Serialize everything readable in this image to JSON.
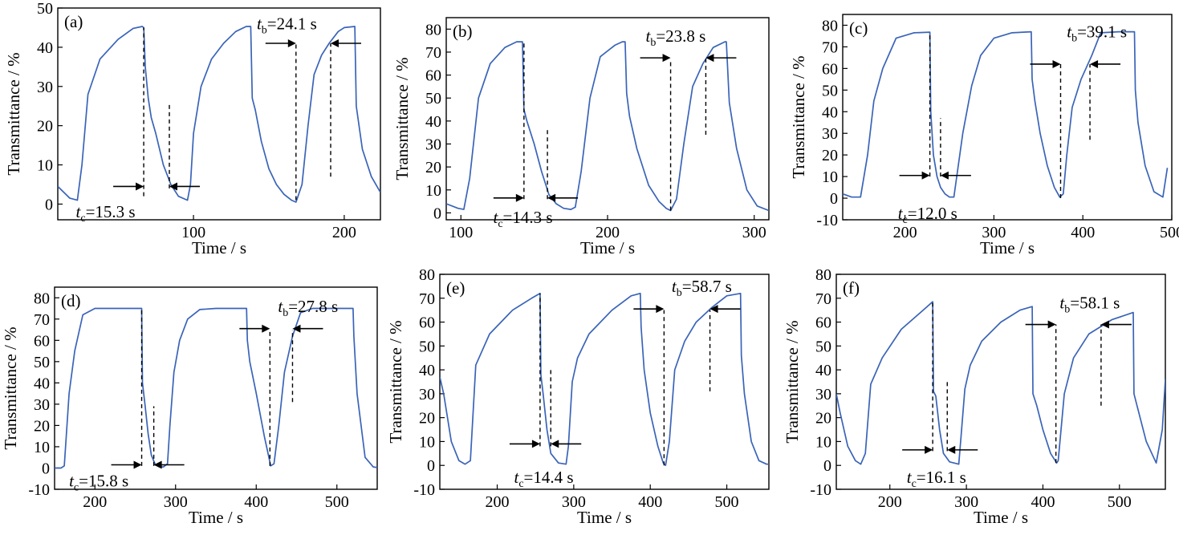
{
  "chart_data": [
    {
      "panel_label": "(a)",
      "type": "line",
      "xlabel": "Time / s",
      "ylabel": "Transmittance / %",
      "xlim": [
        10,
        224
      ],
      "ylim": [
        -4,
        50
      ],
      "xticks": [
        100,
        200
      ],
      "yticks": [
        0,
        10,
        20,
        30,
        40,
        50
      ],
      "series": [
        {
          "x": [
            10,
            18,
            23,
            26,
            30,
            38,
            50,
            60,
            66,
            67,
            68,
            70,
            72,
            75,
            80,
            85,
            90,
            96,
            98,
            100,
            105,
            112,
            120,
            128,
            135,
            138,
            139,
            141,
            145,
            150,
            155,
            160,
            165,
            168,
            172,
            176,
            180,
            185,
            190,
            196,
            200,
            207,
            208,
            212,
            218,
            224
          ],
          "y": [
            4.5,
            1.5,
            1,
            10,
            28,
            37,
            42,
            44.8,
            45.3,
            45,
            35,
            27,
            22,
            18,
            10,
            5,
            2,
            1,
            5,
            18,
            30,
            37,
            41,
            44,
            45.3,
            45.3,
            27,
            24,
            16,
            9,
            5,
            2.5,
            1,
            0.5,
            5,
            20,
            33,
            38,
            41,
            44,
            45,
            45.3,
            25,
            14,
            7,
            3
          ]
        }
      ],
      "annotations": [
        {
          "kind": "tc",
          "var": "t",
          "sub": "c",
          "rest": "=15.3 s",
          "x1": 67,
          "x2": 84,
          "dash1_y": [
            2,
            45
          ],
          "dash2_y": [
            4,
            26
          ],
          "arrow_y": 4.5,
          "text_x": 22,
          "text_y": -2
        },
        {
          "kind": "tb",
          "var": "t",
          "sub": "b",
          "rest": "=24.1 s",
          "x1": 168,
          "x2": 191,
          "dash1_y": [
            1,
            41
          ],
          "dash2_y": [
            7,
            41
          ],
          "arrow_y": 41,
          "text_x": 142,
          "text_y": 46
        }
      ]
    },
    {
      "panel_label": "(b)",
      "type": "line",
      "xlabel": "Time / s",
      "ylabel": "Transmittance / %",
      "xlim": [
        90,
        310
      ],
      "ylim": [
        -3,
        85
      ],
      "xticks": [
        100,
        200,
        300
      ],
      "yticks": [
        0,
        10,
        20,
        30,
        40,
        50,
        60,
        70,
        80
      ],
      "series": [
        {
          "x": [
            90,
            98,
            102,
            106,
            112,
            120,
            130,
            138,
            142,
            143,
            145,
            150,
            155,
            160,
            165,
            170,
            175,
            178,
            182,
            188,
            195,
            205,
            210,
            212,
            213,
            215,
            220,
            228,
            235,
            240,
            243,
            247,
            252,
            258,
            265,
            272,
            280,
            281,
            283,
            288,
            295,
            302,
            310
          ],
          "y": [
            4,
            2,
            1.5,
            15,
            50,
            65,
            72,
            74.5,
            74.5,
            45,
            40,
            30,
            18,
            8,
            4,
            2,
            1.5,
            2.5,
            18,
            50,
            68,
            73,
            74.5,
            74.5,
            52,
            42,
            28,
            12,
            5,
            2,
            1,
            6,
            30,
            55,
            65,
            72,
            74.5,
            74.5,
            48,
            28,
            10,
            3,
            1
          ]
        }
      ],
      "annotations": [
        {
          "kind": "tc",
          "var": "t",
          "sub": "c",
          "rest": "=14.3 s",
          "x1": 143,
          "x2": 159,
          "dash1_y": [
            6,
            74
          ],
          "dash2_y": [
            6,
            37
          ],
          "arrow_y": 6.5,
          "text_x": 122,
          "text_y": -2
        },
        {
          "kind": "tb",
          "var": "t",
          "sub": "b",
          "rest": "=23.8 s",
          "x1": 243,
          "x2": 267,
          "dash1_y": [
            1,
            67
          ],
          "dash2_y": [
            34,
            67
          ],
          "arrow_y": 67.5,
          "text_x": 226,
          "text_y": 77
        }
      ]
    },
    {
      "panel_label": "(c)",
      "type": "line",
      "xlabel": "Time / s",
      "ylabel": "Transmittance / %",
      "xlim": [
        130,
        500
      ],
      "ylim": [
        -10,
        85
      ],
      "xticks": [
        200,
        300,
        400,
        500
      ],
      "yticks": [
        -10,
        0,
        10,
        20,
        30,
        40,
        50,
        60,
        70,
        80
      ],
      "series": [
        {
          "x": [
            130,
            140,
            150,
            158,
            165,
            175,
            190,
            210,
            228,
            229,
            232,
            236,
            240,
            245,
            250,
            255,
            265,
            275,
            285,
            300,
            320,
            342,
            343,
            346,
            352,
            360,
            368,
            374,
            378,
            382,
            388,
            398,
            410,
            420,
            440,
            458,
            459,
            462,
            470,
            480,
            490,
            495
          ],
          "y": [
            2,
            0.5,
            0.5,
            20,
            45,
            60,
            74,
            76.5,
            76.8,
            40,
            20,
            10,
            5,
            2,
            0.5,
            0.5,
            30,
            52,
            66,
            74,
            76.5,
            77,
            55,
            45,
            30,
            15,
            5,
            0.5,
            2,
            20,
            42,
            55,
            66,
            76.5,
            77,
            77,
            50,
            35,
            15,
            3,
            0.5,
            14
          ]
        }
      ],
      "annotations": [
        {
          "kind": "tc",
          "var": "t",
          "sub": "c",
          "rest": "=12.0 s",
          "x1": 228,
          "x2": 240,
          "dash1_y": [
            10,
            76
          ],
          "dash2_y": [
            10,
            37
          ],
          "arrow_y": 10.5,
          "text_x": 192,
          "text_y": -7
        },
        {
          "kind": "tb",
          "var": "t",
          "sub": "b",
          "rest": "=39.1 s",
          "x1": 375,
          "x2": 408,
          "dash1_y": [
            0,
            62
          ],
          "dash2_y": [
            27,
            62
          ],
          "arrow_y": 62,
          "text_x": 382,
          "text_y": 77
        }
      ]
    },
    {
      "panel_label": "(d)",
      "type": "line",
      "xlabel": "Time / s",
      "ylabel": "Transmittance / %",
      "xlim": [
        150,
        550
      ],
      "ylim": [
        -10,
        85
      ],
      "xticks": [
        200,
        300,
        400,
        500
      ],
      "yticks": [
        -10,
        0,
        10,
        20,
        30,
        40,
        50,
        60,
        70,
        80
      ],
      "series": [
        {
          "x": [
            150,
            158,
            162,
            168,
            175,
            185,
            200,
            220,
            240,
            258,
            259,
            262,
            266,
            270,
            275,
            280,
            285,
            290,
            293,
            298,
            305,
            315,
            330,
            350,
            370,
            388,
            389,
            392,
            400,
            410,
            418,
            422,
            428,
            435,
            445,
            455,
            470,
            500,
            520,
            521,
            525,
            535,
            545,
            550
          ],
          "y": [
            0,
            0,
            1,
            35,
            55,
            72,
            75,
            75,
            75,
            75,
            40,
            30,
            16,
            6,
            1.5,
            0.5,
            0.5,
            2,
            20,
            45,
            60,
            70,
            74.5,
            75,
            75,
            75,
            60,
            50,
            35,
            15,
            1,
            2,
            20,
            45,
            62,
            73,
            75,
            75,
            75,
            62,
            35,
            5,
            0.5,
            0.2
          ]
        }
      ],
      "annotations": [
        {
          "kind": "tc",
          "var": "t",
          "sub": "c",
          "rest": "=15.8 s",
          "x1": 258,
          "x2": 273,
          "dash1_y": [
            1,
            75
          ],
          "dash2_y": [
            1,
            29
          ],
          "arrow_y": 1.5,
          "text_x": 168,
          "text_y": -6
        },
        {
          "kind": "tb",
          "var": "t",
          "sub": "b",
          "rest": "=27.8 s",
          "x1": 417,
          "x2": 445,
          "dash1_y": [
            1,
            65
          ],
          "dash2_y": [
            31,
            65
          ],
          "arrow_y": 65.5,
          "text_x": 427,
          "text_y": 76
        }
      ]
    },
    {
      "panel_label": "(e)",
      "type": "line",
      "xlabel": "Time / s",
      "ylabel": "Transmittance / %",
      "xlim": [
        125,
        555
      ],
      "ylim": [
        -10,
        80
      ],
      "xticks": [
        200,
        300,
        400,
        500
      ],
      "yticks": [
        -10,
        0,
        10,
        20,
        30,
        40,
        50,
        60,
        70,
        80
      ],
      "series": [
        {
          "x": [
            125,
            130,
            140,
            150,
            158,
            165,
            172,
            190,
            220,
            245,
            256,
            257,
            260,
            265,
            270,
            280,
            290,
            293,
            298,
            305,
            320,
            350,
            375,
            387,
            388,
            392,
            400,
            410,
            417,
            420,
            425,
            432,
            445,
            460,
            480,
            500,
            518,
            519,
            523,
            532,
            542,
            552,
            555
          ],
          "y": [
            37,
            30,
            10,
            2,
            0.5,
            2,
            42,
            55,
            65,
            70,
            72,
            38,
            30,
            15,
            5,
            1,
            0.5,
            8,
            35,
            45,
            55,
            65,
            71,
            72,
            58,
            40,
            22,
            8,
            1,
            0,
            10,
            40,
            52,
            60,
            66,
            71,
            72,
            46,
            30,
            10,
            2,
            0.5,
            0.5
          ]
        }
      ],
      "annotations": [
        {
          "kind": "tc",
          "var": "t",
          "sub": "c",
          "rest": "=14.4 s",
          "x1": 256,
          "x2": 270,
          "dash1_y": [
            8,
            72
          ],
          "dash2_y": [
            8,
            40
          ],
          "arrow_y": 9,
          "text_x": 222,
          "text_y": -5
        },
        {
          "kind": "tb",
          "var": "t",
          "sub": "b",
          "rest": "=58.7 s",
          "x1": 418,
          "x2": 478,
          "dash1_y": [
            0,
            65
          ],
          "dash2_y": [
            31,
            65
          ],
          "arrow_y": 65.5,
          "text_x": 428,
          "text_y": 75
        }
      ]
    },
    {
      "panel_label": "(f)",
      "type": "line",
      "xlabel": "Time / s",
      "ylabel": "Transmittance / %",
      "xlim": [
        130,
        560
      ],
      "ylim": [
        -10,
        80
      ],
      "xticks": [
        200,
        300,
        400,
        500
      ],
      "yticks": [
        -10,
        0,
        10,
        20,
        30,
        40,
        50,
        60,
        70,
        80
      ],
      "series": [
        {
          "x": [
            130,
            135,
            145,
            155,
            162,
            168,
            175,
            190,
            215,
            240,
            256,
            257,
            260,
            265,
            270,
            278,
            290,
            293,
            298,
            305,
            320,
            345,
            370,
            386,
            387,
            392,
            400,
            410,
            418,
            420,
            428,
            440,
            460,
            490,
            518,
            519,
            523,
            535,
            548,
            556,
            560
          ],
          "y": [
            30,
            22,
            8,
            2,
            0.5,
            5,
            34,
            45,
            57,
            64,
            68.5,
            31,
            29,
            15,
            5,
            1.5,
            0.5,
            12,
            32,
            42,
            52,
            60,
            65,
            66.5,
            30,
            25,
            15,
            5,
            1,
            2,
            30,
            45,
            55,
            61,
            64,
            30,
            25,
            10,
            1,
            15,
            36
          ]
        }
      ],
      "annotations": [
        {
          "kind": "tc",
          "var": "t",
          "sub": "c",
          "rest": "=16.1 s",
          "x1": 256,
          "x2": 275,
          "dash1_y": [
            6,
            68
          ],
          "dash2_y": [
            6,
            36
          ],
          "arrow_y": 6.5,
          "text_x": 222,
          "text_y": -5
        },
        {
          "kind": "tb",
          "var": "t",
          "sub": "b",
          "rest": "=58.1 s",
          "x1": 417,
          "x2": 476,
          "dash1_y": [
            1,
            59
          ],
          "dash2_y": [
            25,
            59
          ],
          "arrow_y": 59,
          "text_x": 422,
          "text_y": 68
        }
      ]
    }
  ]
}
